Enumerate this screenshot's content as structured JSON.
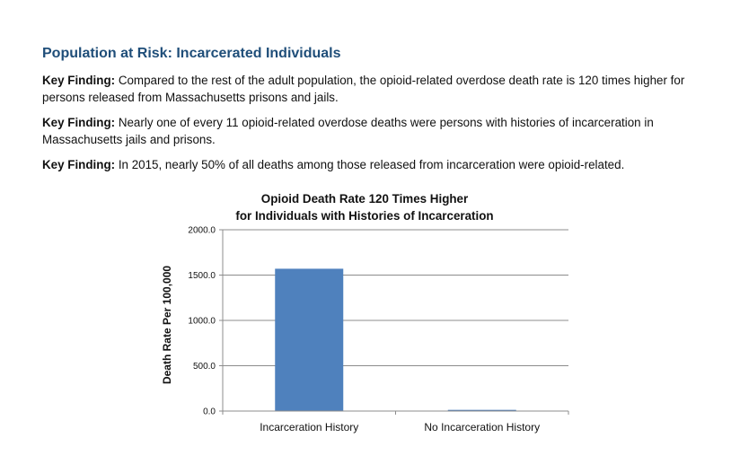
{
  "section": {
    "title": "Population at Risk: Incarcerated Individuals"
  },
  "findings": [
    {
      "label": "Key Finding:",
      "text": " Compared to the rest of the adult population, the opioid-related overdose death rate is 120 times higher for persons released from Massachusetts prisons and jails."
    },
    {
      "label": "Key Finding:",
      "text": " Nearly one of every 11 opioid-related overdose deaths were persons with histories of incarceration in Massachusetts jails and prisons."
    },
    {
      "label": "Key Finding:",
      "text": " In 2015, nearly 50% of all deaths among those released from incarceration were opioid-related."
    }
  ],
  "chart_data": {
    "type": "bar",
    "title_lines": [
      "Opioid Death Rate 120 Times Higher",
      "for Individuals with Histories of Incarceration"
    ],
    "categories": [
      "Incarceration History",
      "No Incarceration History"
    ],
    "values": [
      1570.0,
      13.1
    ],
    "ylabel": "Death Rate Per 100,000",
    "xlabel": "",
    "ylim": [
      0,
      2000
    ],
    "yticks": [
      "0.0",
      "500.0",
      "1000.0",
      "1500.0",
      "2000.0"
    ],
    "grid": true,
    "legend": "none",
    "bar_color": "#4f81bd"
  }
}
